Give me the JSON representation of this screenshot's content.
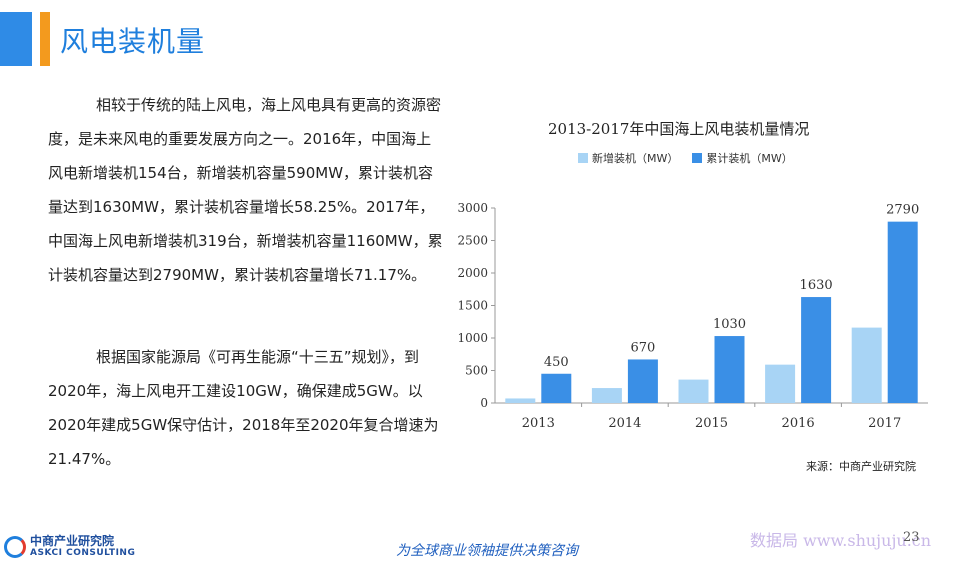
{
  "header": {
    "title": "风电装机量"
  },
  "body": {
    "para1": "相较于传统的陆上风电，海上风电具有更高的资源密度，是未来风电的重要发展方向之一。2016年，中国海上风电新增装机154台，新增装机容量590MW，累计装机容量达到1630MW，累计装机容量增长58.25%。2017年，中国海上风电新增装机319台，新增装机容量1160MW，累计装机容量达到2790MW，累计装机容量增长71.17%。",
    "para2": "根据国家能源局《可再生能源“十三五”规划》，到2020年，海上风电开工建设10GW，确保建成5GW。以2020年建成5GW保守估计，2018年至2020年复合增速为21.47%。"
  },
  "chart_data": {
    "type": "bar",
    "title": "2013-2017年中国海上风电装机量情况",
    "categories": [
      "2013",
      "2014",
      "2015",
      "2016",
      "2017"
    ],
    "series": [
      {
        "name": "新增装机（MW）",
        "values": [
          70,
          230,
          360,
          590,
          1160
        ],
        "color": "#a8d4f5",
        "show_labels": false
      },
      {
        "name": "累计装机（MW）",
        "values": [
          450,
          670,
          1030,
          1630,
          2790
        ],
        "color": "#3a8fe6",
        "show_labels": true
      }
    ],
    "ylim": [
      0,
      3000
    ],
    "yticks": [
      0,
      500,
      1000,
      1500,
      2000,
      2500,
      3000
    ],
    "grid": false,
    "legend_position": "top"
  },
  "source": "来源：中商产业研究院",
  "footer": {
    "logo_cn": "中商产业研究院",
    "logo_en": "ASKCI CONSULTING",
    "slogan": "为全球商业领袖提供决策咨询",
    "watermark": "数据局 www.shujuju.cn",
    "page": "23"
  }
}
